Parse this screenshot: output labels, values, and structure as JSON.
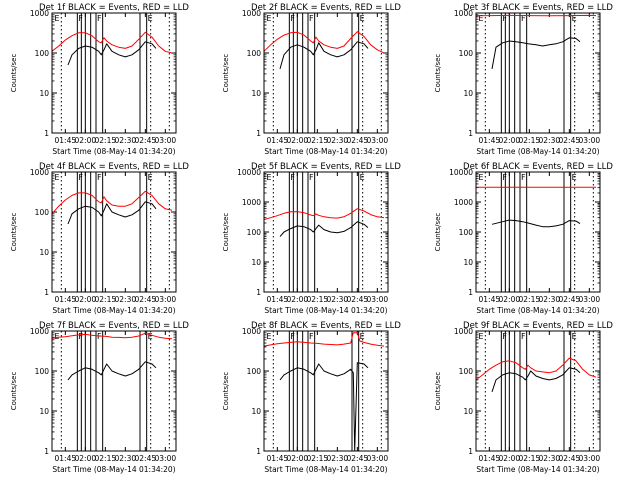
{
  "figure": {
    "background": "#ffffff",
    "events_color": "#000000",
    "lld_color": "#ff0000"
  },
  "chart_data": [
    {
      "type": "line",
      "title": "Det 1f BLACK = Events, RED = LLD",
      "xlabel": "Start Time (08-May-14 01:34:20)",
      "ylabel": "Counts/sec",
      "yscale": "log",
      "ylim": [
        1,
        1000
      ],
      "y_ticks": [
        "1",
        "10",
        "100",
        "1000"
      ],
      "x_ticks": [
        "01:45",
        "02:00",
        "02:15",
        "02:30",
        "02:45",
        "03:00"
      ],
      "flag_labels": [
        "E",
        "F",
        "F",
        "E"
      ],
      "series": [
        {
          "name": "Events",
          "x": [
            "01:47",
            "01:50",
            "01:55",
            "02:00",
            "02:05",
            "02:10",
            "02:12",
            "02:14",
            "02:16",
            "02:20",
            "02:25",
            "02:30",
            "02:35",
            "02:40",
            "02:45",
            "02:50",
            "02:53"
          ],
          "y": [
            50,
            90,
            130,
            150,
            140,
            110,
            90,
            120,
            170,
            110,
            90,
            80,
            90,
            120,
            190,
            170,
            130
          ]
        },
        {
          "name": "LLD",
          "x": [
            "01:35",
            "01:40",
            "01:45",
            "01:50",
            "01:55",
            "02:00",
            "02:05",
            "02:10",
            "02:12",
            "02:14",
            "02:16",
            "02:20",
            "02:25",
            "02:30",
            "02:35",
            "02:40",
            "02:45",
            "02:50",
            "02:55",
            "03:00",
            "03:05"
          ],
          "y": [
            110,
            150,
            210,
            270,
            320,
            320,
            270,
            190,
            180,
            240,
            200,
            160,
            140,
            130,
            150,
            220,
            330,
            250,
            150,
            110,
            100
          ]
        }
      ]
    },
    {
      "type": "line",
      "title": "Det 2f BLACK = Events, RED = LLD",
      "xlabel": "Start Time (08-May-14 01:34:20)",
      "ylabel": "Counts/sec",
      "yscale": "log",
      "ylim": [
        1,
        1000
      ],
      "y_ticks": [
        "1",
        "10",
        "100",
        "1000"
      ],
      "x_ticks": [
        "01:45",
        "02:00",
        "02:15",
        "02:30",
        "02:45",
        "03:00"
      ],
      "flag_labels": [
        "E",
        "F",
        "F",
        "E"
      ],
      "series": [
        {
          "name": "Events",
          "x": [
            "01:47",
            "01:50",
            "01:55",
            "02:00",
            "02:05",
            "02:10",
            "02:12",
            "02:14",
            "02:16",
            "02:20",
            "02:25",
            "02:30",
            "02:35",
            "02:40",
            "02:45",
            "02:50",
            "02:53"
          ],
          "y": [
            40,
            90,
            140,
            160,
            140,
            110,
            90,
            120,
            180,
            110,
            90,
            80,
            90,
            120,
            190,
            170,
            130
          ]
        },
        {
          "name": "LLD",
          "x": [
            "01:35",
            "01:40",
            "01:45",
            "01:50",
            "01:55",
            "02:00",
            "02:05",
            "02:10",
            "02:12",
            "02:14",
            "02:16",
            "02:20",
            "02:25",
            "02:30",
            "02:35",
            "02:40",
            "02:45",
            "02:50",
            "02:55",
            "03:00",
            "03:05"
          ],
          "y": [
            110,
            160,
            220,
            280,
            320,
            330,
            280,
            200,
            180,
            250,
            200,
            160,
            140,
            130,
            150,
            230,
            340,
            260,
            160,
            120,
            100
          ]
        }
      ]
    },
    {
      "type": "line",
      "title": "Det 3f BLACK = Events, RED = LLD",
      "xlabel": "Start Time (08-May-14 01:34:20)",
      "ylabel": "Counts/sec",
      "yscale": "log",
      "ylim": [
        1,
        1000
      ],
      "y_ticks": [
        "1",
        "10",
        "100",
        "1000"
      ],
      "x_ticks": [
        "01:45",
        "02:00",
        "02:15",
        "02:30",
        "02:45",
        "03:00"
      ],
      "flag_labels": [
        "E",
        "F",
        "F",
        "E"
      ],
      "series": [
        {
          "name": "Events",
          "x": [
            "01:47",
            "01:50",
            "01:55",
            "02:00",
            "02:05",
            "02:10",
            "02:14",
            "02:20",
            "02:25",
            "02:30",
            "02:35",
            "02:40",
            "02:45",
            "02:50",
            "02:53"
          ],
          "y": [
            40,
            140,
            180,
            200,
            190,
            180,
            170,
            160,
            150,
            160,
            170,
            190,
            240,
            230,
            190
          ]
        },
        {
          "name": "LLD",
          "x": [
            "01:35",
            "01:45",
            "02:00",
            "02:15",
            "02:30",
            "02:45",
            "03:00",
            "03:05"
          ],
          "y": [
            850,
            860,
            870,
            860,
            850,
            860,
            870,
            860
          ]
        }
      ]
    },
    {
      "type": "line",
      "title": "Det 4f BLACK = Events, RED = LLD",
      "xlabel": "Start Time (08-May-14 01:34:20)",
      "ylabel": "Counts/sec",
      "yscale": "log",
      "ylim": [
        1,
        1000
      ],
      "y_ticks": [
        "1",
        "10",
        "100",
        "1000"
      ],
      "x_ticks": [
        "01:45",
        "02:00",
        "02:15",
        "02:30",
        "02:45",
        "03:00"
      ],
      "flag_labels": [
        "E",
        "F",
        "F",
        "E"
      ],
      "series": [
        {
          "name": "Events",
          "x": [
            "01:47",
            "01:50",
            "01:55",
            "02:00",
            "02:05",
            "02:10",
            "02:12",
            "02:14",
            "02:16",
            "02:20",
            "02:25",
            "02:30",
            "02:35",
            "02:40",
            "02:45",
            "02:50",
            "02:53"
          ],
          "y": [
            50,
            90,
            120,
            140,
            130,
            100,
            80,
            110,
            160,
            100,
            85,
            75,
            85,
            110,
            180,
            160,
            120
          ]
        },
        {
          "name": "LLD",
          "x": [
            "01:35",
            "01:40",
            "01:45",
            "01:50",
            "01:55",
            "02:00",
            "02:05",
            "02:10",
            "02:12",
            "02:14",
            "02:16",
            "02:20",
            "02:25",
            "02:30",
            "02:35",
            "02:40",
            "02:45",
            "02:50",
            "02:55",
            "03:00",
            "03:05"
          ],
          "y": [
            90,
            140,
            200,
            260,
            300,
            300,
            260,
            180,
            170,
            240,
            190,
            150,
            140,
            140,
            160,
            230,
            330,
            260,
            160,
            120,
            110
          ]
        }
      ]
    },
    {
      "type": "line",
      "title": "Det 5f BLACK = Events, RED = LLD",
      "xlabel": "Start Time (08-May-14 01:34:20)",
      "ylabel": "Counts/sec",
      "yscale": "log",
      "ylim": [
        1,
        10000
      ],
      "y_ticks": [
        "1",
        "10",
        "100",
        "1000",
        "10000"
      ],
      "x_ticks": [
        "01:45",
        "02:00",
        "02:15",
        "02:30",
        "02:45",
        "03:00"
      ],
      "flag_labels": [
        "E",
        "F",
        "F",
        "E"
      ],
      "series": [
        {
          "name": "Events",
          "x": [
            "01:47",
            "01:50",
            "01:55",
            "02:00",
            "02:05",
            "02:10",
            "02:12",
            "02:14",
            "02:16",
            "02:20",
            "02:25",
            "02:30",
            "02:35",
            "02:40",
            "02:45",
            "02:50",
            "02:53"
          ],
          "y": [
            70,
            100,
            130,
            160,
            150,
            120,
            100,
            130,
            170,
            120,
            100,
            95,
            105,
            140,
            220,
            180,
            140
          ]
        },
        {
          "name": "LLD",
          "x": [
            "01:35",
            "01:40",
            "01:45",
            "01:50",
            "01:55",
            "02:00",
            "02:05",
            "02:10",
            "02:12",
            "02:14",
            "02:16",
            "02:20",
            "02:25",
            "02:30",
            "02:35",
            "02:40",
            "02:45",
            "02:50",
            "02:55",
            "03:00",
            "03:05"
          ],
          "y": [
            260,
            300,
            350,
            420,
            470,
            480,
            440,
            370,
            350,
            400,
            360,
            320,
            300,
            290,
            320,
            420,
            600,
            500,
            380,
            320,
            300
          ]
        }
      ]
    },
    {
      "type": "line",
      "title": "Det 6f BLACK = Events, RED = LLD",
      "xlabel": "Start Time (08-May-14 01:34:20)",
      "ylabel": "Counts/sec",
      "yscale": "log",
      "ylim": [
        1,
        10000
      ],
      "y_ticks": [
        "1",
        "10",
        "100",
        "1000",
        "10000"
      ],
      "x_ticks": [
        "01:45",
        "02:00",
        "02:15",
        "02:30",
        "02:45",
        "03:00"
      ],
      "flag_labels": [
        "E",
        "F",
        "F",
        "E"
      ],
      "series": [
        {
          "name": "Events",
          "x": [
            "01:47",
            "01:55",
            "02:00",
            "02:05",
            "02:10",
            "02:14",
            "02:20",
            "02:25",
            "02:30",
            "02:35",
            "02:40",
            "02:45",
            "02:50",
            "02:53"
          ],
          "y": [
            180,
            220,
            250,
            240,
            220,
            200,
            170,
            150,
            150,
            160,
            180,
            240,
            230,
            190
          ]
        },
        {
          "name": "LLD",
          "x": [
            "01:35",
            "01:45",
            "02:00",
            "02:15",
            "02:30",
            "02:45",
            "03:00",
            "03:05"
          ],
          "y": [
            3100,
            3100,
            3100,
            3100,
            3100,
            3100,
            3100,
            3100
          ]
        }
      ]
    },
    {
      "type": "line",
      "title": "Det 7f BLACK = Events, RED = LLD",
      "xlabel": "Start Time (08-May-14 01:34:20)",
      "ylabel": "Counts/sec",
      "yscale": "log",
      "ylim": [
        1,
        1000
      ],
      "y_ticks": [
        "1",
        "10",
        "100",
        "1000"
      ],
      "x_ticks": [
        "01:45",
        "02:00",
        "02:15",
        "02:30",
        "02:45",
        "03:00"
      ],
      "flag_labels": [
        "E",
        "F",
        "F",
        "E"
      ],
      "series": [
        {
          "name": "Events",
          "x": [
            "01:47",
            "01:50",
            "01:55",
            "02:00",
            "02:05",
            "02:10",
            "02:12",
            "02:14",
            "02:16",
            "02:20",
            "02:25",
            "02:30",
            "02:35",
            "02:40",
            "02:45",
            "02:50",
            "02:53"
          ],
          "y": [
            60,
            80,
            100,
            120,
            110,
            90,
            80,
            110,
            150,
            100,
            85,
            75,
            85,
            110,
            170,
            150,
            120
          ]
        },
        {
          "name": "LLD",
          "x": [
            "01:35",
            "01:40",
            "01:45",
            "01:50",
            "01:55",
            "02:00",
            "02:05",
            "02:10",
            "02:15",
            "02:20",
            "02:25",
            "02:30",
            "02:35",
            "02:40",
            "02:45",
            "02:50",
            "02:55",
            "03:00",
            "03:05"
          ],
          "y": [
            650,
            700,
            720,
            760,
            800,
            820,
            780,
            750,
            740,
            700,
            690,
            680,
            700,
            750,
            880,
            780,
            700,
            660,
            640
          ]
        }
      ]
    },
    {
      "type": "line",
      "title": "Det 8f BLACK = Events, RED = LLD",
      "xlabel": "Start Time (08-May-14 01:34:20)",
      "ylabel": "Counts/sec",
      "yscale": "log",
      "ylim": [
        1,
        1000
      ],
      "y_ticks": [
        "1",
        "10",
        "100",
        "1000"
      ],
      "x_ticks": [
        "01:45",
        "02:00",
        "02:15",
        "02:30",
        "02:45",
        "03:00"
      ],
      "flag_labels": [
        "E",
        "F",
        "F",
        "E"
      ],
      "series": [
        {
          "name": "Events",
          "x": [
            "01:47",
            "01:50",
            "01:55",
            "02:00",
            "02:05",
            "02:10",
            "02:12",
            "02:14",
            "02:16",
            "02:20",
            "02:25",
            "02:30",
            "02:35",
            "02:40",
            "02:42",
            "02:43",
            "02:45",
            "02:50",
            "02:53"
          ],
          "y": [
            60,
            80,
            100,
            120,
            110,
            90,
            80,
            110,
            150,
            100,
            85,
            75,
            85,
            110,
            90,
            1,
            160,
            150,
            120
          ]
        },
        {
          "name": "LLD",
          "x": [
            "01:35",
            "01:40",
            "01:45",
            "01:50",
            "01:55",
            "02:00",
            "02:05",
            "02:10",
            "02:15",
            "02:20",
            "02:25",
            "02:30",
            "02:35",
            "02:40",
            "02:42",
            "02:45",
            "02:47",
            "02:50",
            "02:55",
            "03:00",
            "03:05"
          ],
          "y": [
            420,
            450,
            480,
            500,
            520,
            540,
            520,
            500,
            490,
            470,
            460,
            450,
            470,
            500,
            900,
            900,
            560,
            520,
            470,
            440,
            420
          ]
        }
      ]
    },
    {
      "type": "line",
      "title": "Det 9f BLACK = Events, RED = LLD",
      "xlabel": "Start Time (08-May-14 01:34:20)",
      "ylabel": "Counts/sec",
      "yscale": "log",
      "ylim": [
        1,
        1000
      ],
      "y_ticks": [
        "1",
        "10",
        "100",
        "1000"
      ],
      "x_ticks": [
        "01:45",
        "02:00",
        "02:15",
        "02:30",
        "02:45",
        "03:00"
      ],
      "flag_labels": [
        "E",
        "F",
        "F",
        "E"
      ],
      "series": [
        {
          "name": "Events",
          "x": [
            "01:47",
            "01:50",
            "01:55",
            "02:00",
            "02:05",
            "02:10",
            "02:12",
            "02:14",
            "02:16",
            "02:20",
            "02:25",
            "02:30",
            "02:35",
            "02:40",
            "02:45",
            "02:50",
            "02:53"
          ],
          "y": [
            30,
            60,
            80,
            90,
            85,
            70,
            60,
            75,
            100,
            75,
            65,
            60,
            65,
            80,
            120,
            110,
            90
          ]
        },
        {
          "name": "LLD",
          "x": [
            "01:35",
            "01:40",
            "01:45",
            "01:50",
            "01:55",
            "02:00",
            "02:05",
            "02:10",
            "02:12",
            "02:14",
            "02:16",
            "02:20",
            "02:25",
            "02:30",
            "02:35",
            "02:40",
            "02:45",
            "02:50",
            "02:55",
            "03:00",
            "03:05"
          ],
          "y": [
            60,
            80,
            110,
            140,
            170,
            180,
            160,
            120,
            110,
            140,
            120,
            100,
            95,
            90,
            100,
            140,
            210,
            180,
            110,
            80,
            70
          ]
        }
      ]
    }
  ]
}
